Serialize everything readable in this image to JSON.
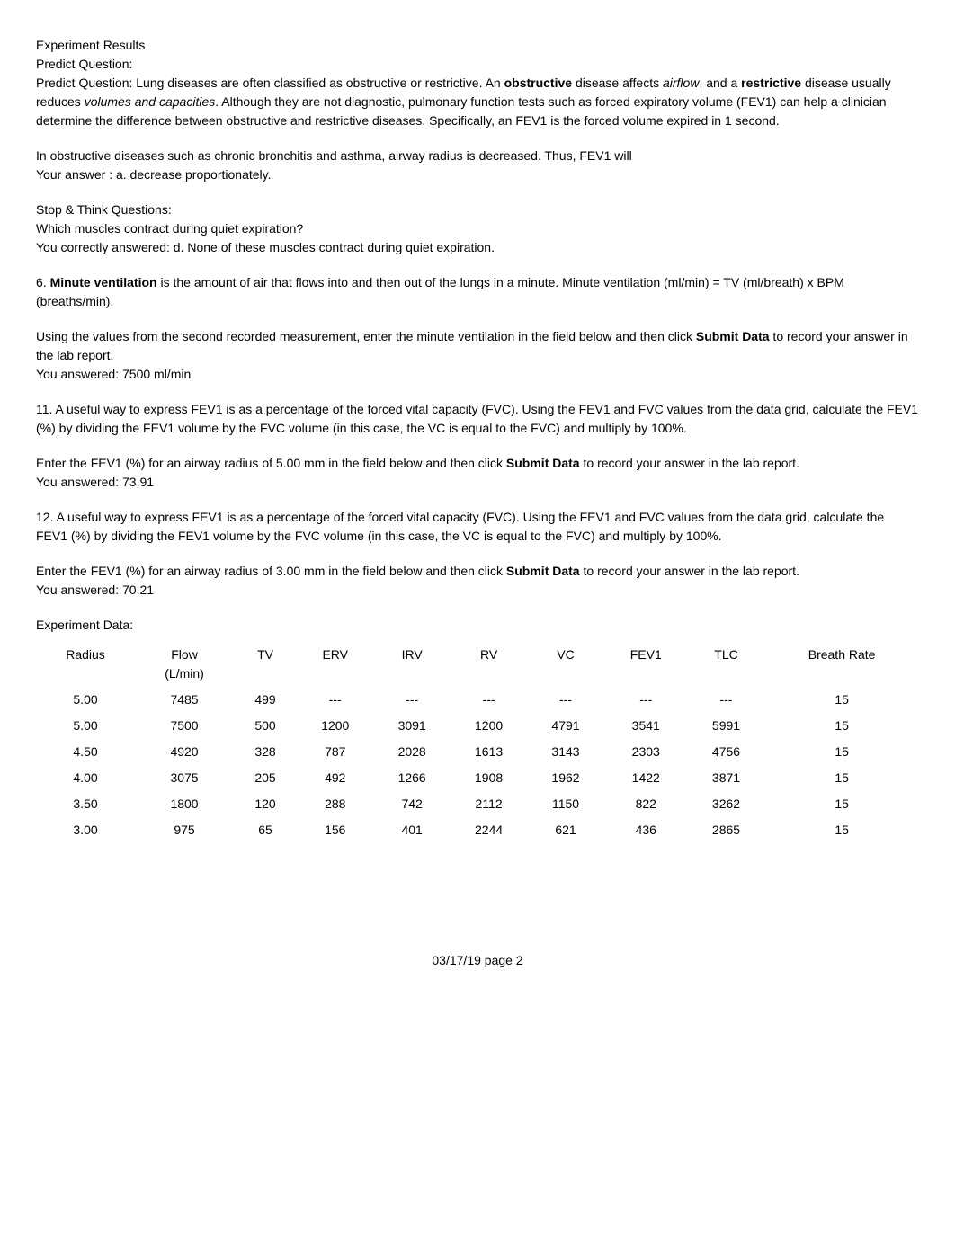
{
  "header": {
    "title1": "Experiment Results",
    "title2": "Predict Question:"
  },
  "predict": {
    "lead": "Predict Question:  Lung diseases are often classified as obstructive or restrictive. An ",
    "obstructive": "obstructive",
    "afterObstructive": " disease affects ",
    "airflow": "airflow",
    "afterAirflow": ", and a ",
    "restrictive": "restrictive",
    "afterRestrictive": " disease usually reduces ",
    "volumesCaps": "volumes and capacities",
    "afterVolumes": ". Although they are not diagnostic, pulmonary function tests such as forced expiratory volume    (FEV1) can help a clinician determine the difference between obstructive and restrictive diseases. Specifically, an   FEV1 is the forced volume expired in 1 second."
  },
  "obstructiveDiseases": {
    "line1": "In obstructive diseases such as chronic bronchitis and asthma, airway radius is decreased. Thus,   FEV1 will",
    "line2": "Your answer : a. decrease proportionately."
  },
  "stopThink": {
    "title": "Stop & Think Questions:",
    "q": "Which muscles contract during quiet expiration?",
    "a": "You correctly answered: d. None of these muscles contract during quiet expiration."
  },
  "q6": {
    "num": "6. ",
    "bold": "Minute ventilation",
    "rest": " is the amount of air that flows into and then out of the lungs in a minute. Minute ventilation (ml/min) = TV (ml/breath) x BPM (breaths/min)."
  },
  "q6b": {
    "line1a": "Using the values from the second recorded measurement, enter the minute ventilation in the field below and then click ",
    "submitData": "Submit Data",
    "line1b": " to record your answer in the lab report.",
    "ans": "You answered: 7500 ml/min"
  },
  "q11": {
    "text": "11. A useful way to express FEV1 is as a percentage of the forced vital capacity (FVC). Using the FEV1 and FVC values from the data grid, calculate the FEV1 (%) by dividing the FEV1 volume by the FVC volume (in this case, the VC is equal to the FVC) and multiply by 100%."
  },
  "q11b": {
    "pre": "Enter the FEV1 (%) for an airway radius of 5.00 mm in the field below and then click  ",
    "submitData": "Submit Data",
    "post": "  to record your answer in the lab report.",
    "ans": "You answered: 73.91"
  },
  "q12": {
    "text": "12. A useful way to express FEV1 is as a percentage of the forced vital capacity (FVC). Using the FEV1 and FVC values from the data grid, calculate the FEV1 (%) by dividing the FEV1 volume by the FVC volume (in this case, the VC is equal to the FVC) and multiply by 100%."
  },
  "q12b": {
    "pre": "Enter the FEV1 (%) for an airway radius of 3.00 mm in the field below and then click  ",
    "submitData": "Submit Data",
    "post": "  to record your answer in the lab report.",
    "ans": "You answered: 70.21"
  },
  "experimentData": {
    "title": "Experiment Data:",
    "columns": [
      "Radius",
      "Flow",
      "TV",
      "ERV",
      "IRV",
      "RV",
      "VC",
      "FEV1",
      "TLC",
      "Breath Rate"
    ],
    "subhead": "(L/min)",
    "rows": [
      [
        "5.00",
        "7485",
        "499",
        "---",
        "---",
        "---",
        "---",
        "---",
        "---",
        "15"
      ],
      [
        "5.00",
        "7500",
        "500",
        "1200",
        "3091",
        "1200",
        "4791",
        "3541",
        "5991",
        "15"
      ],
      [
        "4.50",
        "4920",
        "328",
        "787",
        "2028",
        "1613",
        "3143",
        "2303",
        "4756",
        "15"
      ],
      [
        "4.00",
        "3075",
        "205",
        "492",
        "1266",
        "1908",
        "1962",
        "1422",
        "3871",
        "15"
      ],
      [
        "3.50",
        "1800",
        "120",
        "288",
        "742",
        "2112",
        "1150",
        "822",
        "3262",
        "15"
      ],
      [
        "3.00",
        "975",
        "65",
        "156",
        "401",
        "2244",
        "621",
        "436",
        "2865",
        "15"
      ]
    ]
  },
  "footer": {
    "text": "03/17/19   page 2"
  }
}
